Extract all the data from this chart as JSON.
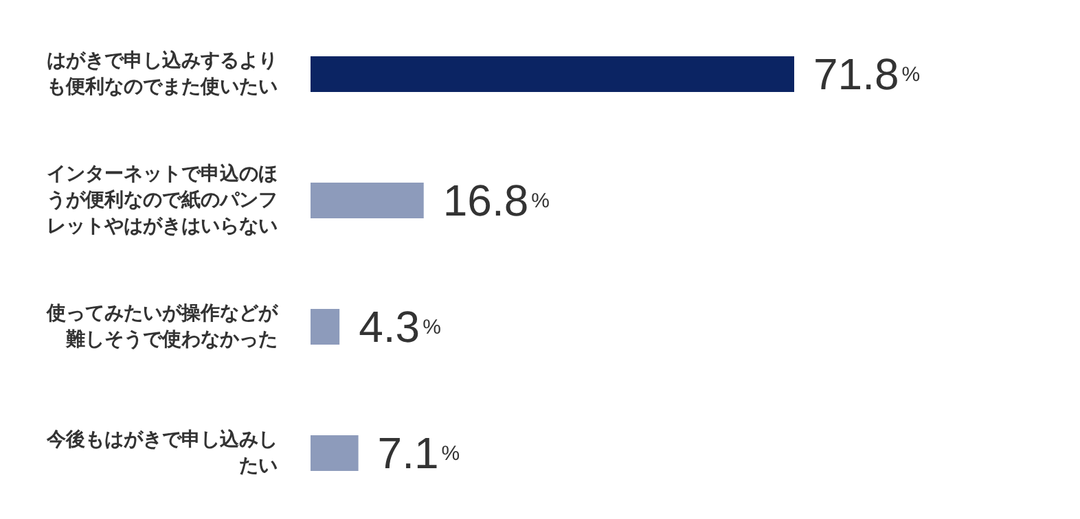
{
  "chart_data": {
    "type": "bar",
    "orientation": "horizontal",
    "categories": [
      "はがきで申し込みするよりも便利なのでまた使いたい",
      "インターネットで申込のほうが便利なので紙のパンフレットやはがきはいらない",
      "使ってみたいが操作などが難しそうで使わなかった",
      "今後もはがきで申し込みしたい"
    ],
    "values": [
      71.8,
      16.8,
      4.3,
      7.1
    ],
    "colors": [
      "#0b2463",
      "#8d9bbb",
      "#8d9bbb",
      "#8d9bbb"
    ],
    "value_labels": [
      "71.8%",
      "16.8%",
      "4.3%",
      "7.1%"
    ],
    "tick_labels": "y"
  }
}
